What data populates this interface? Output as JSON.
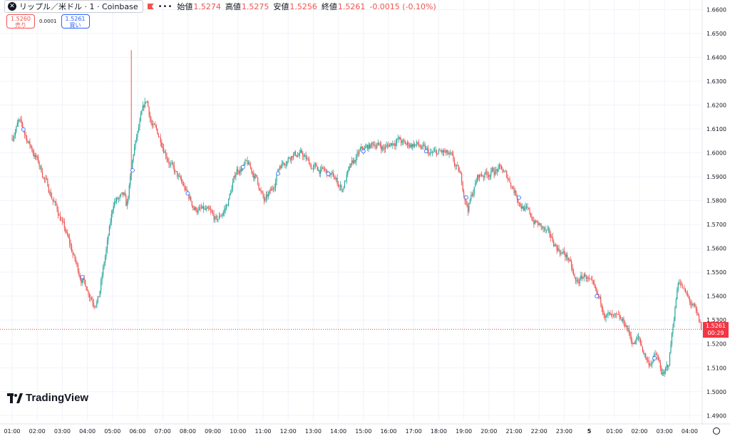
{
  "header": {
    "symbol": "リップル／米ドル · 1 · Coinbase",
    "ohlc": [
      {
        "label": "始値",
        "value": "1.5274"
      },
      {
        "label": "高値",
        "value": "1.5275"
      },
      {
        "label": "安値",
        "value": "1.5256"
      },
      {
        "label": "終値",
        "value": "1.5261"
      }
    ],
    "change": "-0.0015 (-0.10%)"
  },
  "trade": {
    "sell_price": "1.5260",
    "sell_label": "売り",
    "spread": "0.0001",
    "buy_price": "1.5261",
    "buy_label": "買い"
  },
  "brand": "TradingView",
  "last_price": {
    "value": "1.5261",
    "countdown": "00:29"
  },
  "colors": {
    "up": "#26a69a",
    "down": "#ef5350",
    "price_line": "#f23645",
    "text": "#131722",
    "grid": "#f0f3fa"
  },
  "chart_data": {
    "type": "candlestick",
    "y_ticks": [
      "1.6600",
      "1.6500",
      "1.6400",
      "1.6300",
      "1.6200",
      "1.6100",
      "1.6000",
      "1.5900",
      "1.5800",
      "1.5700",
      "1.5600",
      "1.5500",
      "1.5400",
      "1.5300",
      "1.5200",
      "1.5100",
      "1.5000",
      "1.4900"
    ],
    "ylim": [
      1.488,
      1.664
    ],
    "x_ticks": [
      "01:00",
      "02:00",
      "03:00",
      "04:00",
      "05:00",
      "06:00",
      "07:00",
      "08:00",
      "09:00",
      "10:00",
      "11:00",
      "12:00",
      "13:00",
      "14:00",
      "15:00",
      "16:00",
      "17:00",
      "18:00",
      "19:00",
      "20:00",
      "21:00",
      "22:00",
      "23:00",
      "5",
      "01:00",
      "02:00",
      "03:00",
      "04:00"
    ],
    "price_path": [
      [
        0.0,
        1.606
      ],
      [
        0.3,
        1.613
      ],
      [
        1.0,
        1.598
      ],
      [
        1.5,
        1.585
      ],
      [
        2.0,
        1.572
      ],
      [
        2.7,
        1.55
      ],
      [
        3.3,
        1.538
      ],
      [
        3.5,
        1.54
      ],
      [
        3.9,
        1.566
      ],
      [
        4.1,
        1.58
      ],
      [
        4.5,
        1.581
      ],
      [
        4.6,
        1.576
      ],
      [
        4.9,
        1.601
      ],
      [
        5.2,
        1.615
      ],
      [
        5.4,
        1.622
      ],
      [
        5.6,
        1.612
      ],
      [
        6.0,
        1.605
      ],
      [
        6.5,
        1.592
      ],
      [
        6.9,
        1.585
      ],
      [
        7.3,
        1.577
      ],
      [
        7.8,
        1.575
      ],
      [
        8.2,
        1.571
      ],
      [
        8.6,
        1.578
      ],
      [
        9.0,
        1.593
      ],
      [
        9.4,
        1.595
      ],
      [
        9.8,
        1.589
      ],
      [
        10.1,
        1.579
      ],
      [
        10.4,
        1.584
      ],
      [
        10.7,
        1.595
      ],
      [
        11.2,
        1.6
      ],
      [
        11.6,
        1.599
      ],
      [
        12.0,
        1.594
      ],
      [
        12.5,
        1.592
      ],
      [
        12.9,
        1.589
      ],
      [
        13.2,
        1.585
      ],
      [
        13.4,
        1.591
      ],
      [
        13.9,
        1.6
      ],
      [
        14.5,
        1.604
      ],
      [
        14.9,
        1.602
      ],
      [
        15.4,
        1.606
      ],
      [
        15.7,
        1.603
      ],
      [
        16.1,
        1.604
      ],
      [
        16.7,
        1.599
      ],
      [
        17.2,
        1.6
      ],
      [
        17.5,
        1.598
      ],
      [
        17.9,
        1.59
      ],
      [
        18.2,
        1.577
      ],
      [
        18.6,
        1.59
      ],
      [
        19.0,
        1.592
      ],
      [
        19.5,
        1.593
      ],
      [
        19.9,
        1.588
      ],
      [
        20.3,
        1.579
      ],
      [
        20.8,
        1.572
      ],
      [
        21.2,
        1.568
      ],
      [
        21.8,
        1.56
      ],
      [
        22.2,
        1.556
      ],
      [
        22.5,
        1.545
      ],
      [
        22.9,
        1.549
      ],
      [
        23.3,
        1.54
      ],
      [
        23.7,
        1.533
      ],
      [
        24.0,
        1.53
      ],
      [
        24.5,
        1.528
      ],
      [
        24.8,
        1.52
      ],
      [
        25.0,
        1.522
      ],
      [
        25.4,
        1.512
      ],
      [
        25.7,
        1.515
      ],
      [
        26.0,
        1.506
      ],
      [
        26.2,
        1.511
      ],
      [
        26.4,
        1.53
      ],
      [
        26.6,
        1.548
      ],
      [
        26.9,
        1.54
      ],
      [
        27.2,
        1.535
      ],
      [
        27.5,
        1.526
      ]
    ],
    "spike": {
      "x": 4.75,
      "high": 1.643
    },
    "last": 1.5261
  }
}
